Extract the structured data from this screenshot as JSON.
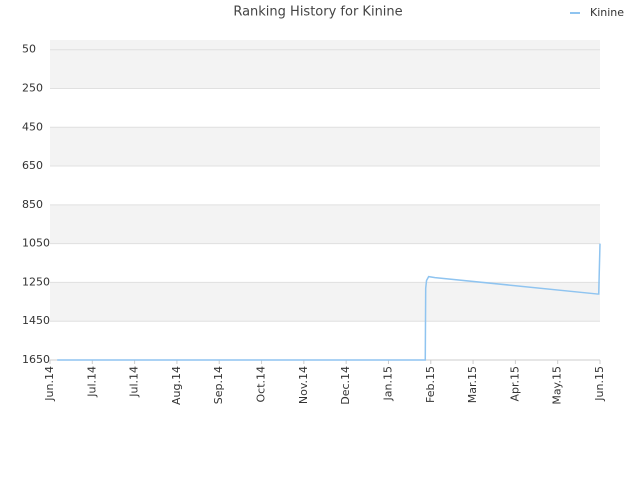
{
  "chart_data": {
    "type": "line",
    "title": "Ranking History for Kinine",
    "x": [
      0.17,
      8.87,
      8.88,
      8.9,
      8.95,
      9.1,
      12.95,
      12.97,
      12.98,
      13.0
    ],
    "series": [
      {
        "name": "Kinine",
        "color": "#8fc4f0",
        "values": [
          1650,
          1650,
          1280,
          1240,
          1220,
          1225,
          1310,
          1310,
          1220,
          1050
        ]
      }
    ],
    "xlim": [
      0,
      13
    ],
    "xticks": [
      {
        "value": 0,
        "label": "Jun.14"
      },
      {
        "value": 1,
        "label": "Jul.14"
      },
      {
        "value": 2,
        "label": "Jul.14"
      },
      {
        "value": 3,
        "label": "Aug.14"
      },
      {
        "value": 4,
        "label": "Sep.14"
      },
      {
        "value": 5,
        "label": "Oct.14"
      },
      {
        "value": 6,
        "label": "Nov.14"
      },
      {
        "value": 7,
        "label": "Dec.14"
      },
      {
        "value": 8,
        "label": "Jan.15"
      },
      {
        "value": 9,
        "label": "Feb.15"
      },
      {
        "value": 10,
        "label": "Mar.15"
      },
      {
        "value": 11,
        "label": "Apr.15"
      },
      {
        "value": 12,
        "label": "May.15"
      },
      {
        "value": 13,
        "label": "Jun.15"
      }
    ],
    "ylim": [
      1650,
      0
    ],
    "yticks": [
      50,
      250,
      450,
      650,
      850,
      1050,
      1250,
      1450,
      1650
    ],
    "grid": true,
    "legend": "top-right"
  }
}
